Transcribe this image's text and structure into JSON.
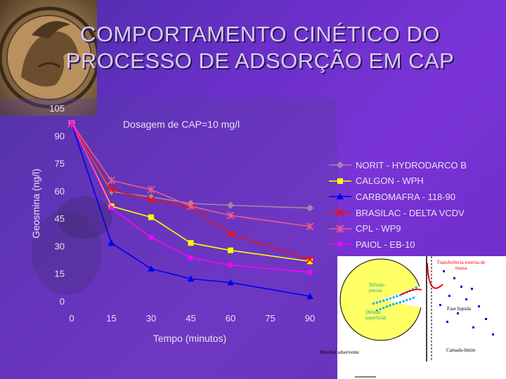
{
  "slide": {
    "title_line1": "COMPORTAMENTO CINÉTICO DO",
    "title_line2": "PROCESSO DE ADSORÇÃO EM CAP"
  },
  "chart_data": {
    "type": "line",
    "title": "Dosagem de CAP=10 mg/l",
    "xlabel": "Tempo (minutos)",
    "ylabel": "Geosmina (ng/l)",
    "x": [
      0,
      15,
      30,
      45,
      60,
      90
    ],
    "xticks": [
      0,
      15,
      30,
      45,
      60,
      75,
      90
    ],
    "yticks": [
      0,
      15,
      30,
      45,
      60,
      75,
      90,
      105
    ],
    "xlim": [
      0,
      90
    ],
    "ylim": [
      0,
      105
    ],
    "grid": false,
    "legend_position": "right",
    "series": [
      {
        "name": "NORIT - HYDRODARCO B",
        "color": "#a08aa0",
        "marker": "diamond",
        "values": [
          97,
          60,
          57,
          53.5,
          52.5,
          51
        ]
      },
      {
        "name": "CALGON - WPH",
        "color": "#ffff00",
        "marker": "square",
        "values": [
          97,
          52,
          46,
          32,
          28,
          22
        ]
      },
      {
        "name": "CARBOMAFRA - 118-90",
        "color": "#0000ee",
        "marker": "triangle",
        "values": [
          97,
          32,
          18,
          12.5,
          10.5,
          3
        ]
      },
      {
        "name": "BRASILAC - DELTA VCDV",
        "color": "#ee1010",
        "marker": "x",
        "values": [
          97,
          61,
          55.5,
          51.5,
          37,
          23
        ]
      },
      {
        "name": "CPL - WP9",
        "color": "#f05a8c",
        "marker": "star",
        "values": [
          97,
          66,
          61,
          52,
          47,
          41
        ]
      },
      {
        "name": "PAIOL - EB-10",
        "color": "#ff00ff",
        "marker": "circle",
        "values": [
          97,
          51,
          35,
          24,
          20,
          16
        ]
      }
    ]
  },
  "diagram": {
    "label_transfer": "Transferência externa de massa",
    "label_internal_diffusion": "Difusão porosa",
    "label_surface_diffusion": "Difusão superficial",
    "label_liquid_phase": "Fase líquida",
    "label_sorbent": "Material adsorvente",
    "label_boundary_layer": "Camada-limite"
  }
}
